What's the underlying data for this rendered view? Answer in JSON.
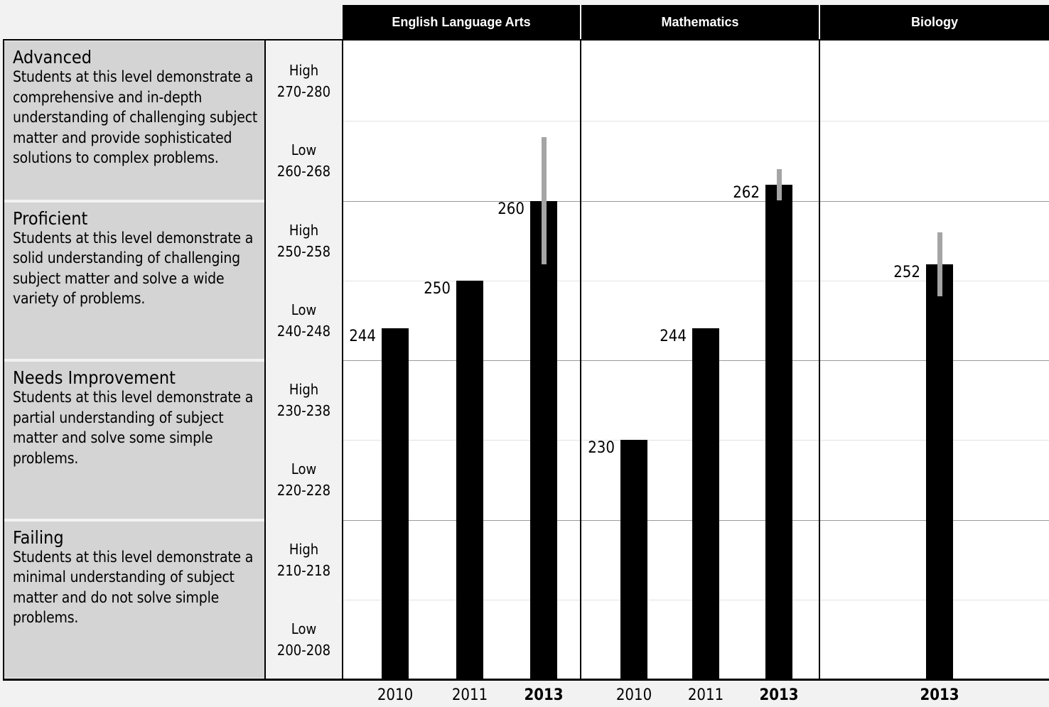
{
  "chart_data": {
    "type": "bar",
    "title": "",
    "ylim": [
      200,
      280
    ],
    "ylabel": "",
    "subjects": [
      {
        "name": "English Language Arts",
        "x": [
          "2010",
          "2011",
          "2013"
        ],
        "values": [
          244,
          250,
          260
        ],
        "error_range": [
          null,
          null,
          [
            252,
            268
          ]
        ]
      },
      {
        "name": "Mathematics",
        "x": [
          "2010",
          "2011",
          "2013"
        ],
        "values": [
          230,
          244,
          262
        ],
        "error_range": [
          null,
          null,
          [
            260,
            264
          ]
        ]
      },
      {
        "name": "Biology",
        "x": [
          "2013"
        ],
        "values": [
          252
        ],
        "error_range": [
          [
            248,
            256
          ]
        ]
      }
    ],
    "highlight_year": "2013",
    "bands": [
      {
        "label": "High",
        "range": "270-280"
      },
      {
        "label": "Low",
        "range": "260-268"
      },
      {
        "label": "High",
        "range": "250-258"
      },
      {
        "label": "Low",
        "range": "240-248"
      },
      {
        "label": "High",
        "range": "230-238"
      },
      {
        "label": "Low",
        "range": "220-228"
      },
      {
        "label": "High",
        "range": "210-218"
      },
      {
        "label": "Low",
        "range": "200-208"
      }
    ],
    "levels": [
      {
        "name": "Advanced",
        "description": "Students at this level demonstrate a comprehensive and in-depth understanding of challenging subject matter and provide sophisticated solutions to complex problems."
      },
      {
        "name": "Proficient",
        "description": "Students at this level demonstrate a solid understanding of challenging subject matter and solve a wide variety of problems."
      },
      {
        "name": "Needs Improvement",
        "description": "Students at this level demonstrate a partial understanding of subject matter and solve some simple problems."
      },
      {
        "name": "Failing",
        "description": "Students at this level demonstrate a minimal understanding of subject matter and do not solve simple problems."
      }
    ],
    "colors": {
      "bar": "#000000",
      "error_bar": "#a5a5a5",
      "level_bg": "#d4d4d4",
      "header_bg": "#000000",
      "header_text": "#ffffff"
    }
  }
}
